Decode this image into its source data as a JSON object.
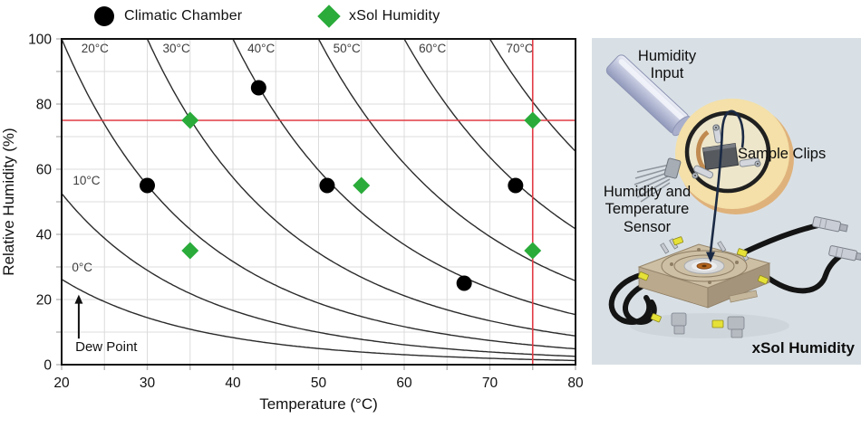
{
  "colors": {
    "accent_green": "#2aab3a",
    "crosshair_red": "#e23b43",
    "grid_gray": "#dcdcdc",
    "curve_black": "#2b2b2b",
    "panel_background": "#d9e0e5"
  },
  "chart_data": {
    "type": "scatter",
    "xlabel": "Temperature (°C)",
    "ylabel": "Relative Humidity (%)",
    "xlim": [
      20,
      80
    ],
    "ylim": [
      0,
      100
    ],
    "x_major_ticks": [
      20,
      30,
      40,
      50,
      60,
      70,
      80
    ],
    "y_major_ticks": [
      0,
      20,
      40,
      60,
      80,
      100
    ],
    "x_minor_step": 5,
    "y_minor_step": 10,
    "grid": {
      "on": true,
      "x_step": 5,
      "y_step": 10,
      "color": "#dcdcdc"
    },
    "dew_point_curves": {
      "temps": [
        0,
        10,
        20,
        30,
        40,
        50,
        60,
        70
      ],
      "color": "#2b2b2b",
      "labels": [
        {
          "text": "0°C",
          "t": 22.4,
          "rh": 28.6
        },
        {
          "text": "10°C",
          "t": 22.9,
          "rh": 55.3
        },
        {
          "text": "20°C",
          "t": 23.9,
          "rh": 95.8
        },
        {
          "text": "30°C",
          "t": 33.4,
          "rh": 95.8
        },
        {
          "text": "40°C",
          "t": 43.3,
          "rh": 95.8
        },
        {
          "text": "50°C",
          "t": 53.3,
          "rh": 95.8
        },
        {
          "text": "60°C",
          "t": 63.3,
          "rh": 95.8
        },
        {
          "text": "70°C",
          "t": 73.5,
          "rh": 95.8
        }
      ]
    },
    "annotation": {
      "text": "Dew Point",
      "arrow_t": 22,
      "arrow_rh_from": 8,
      "arrow_rh_to": 21.5,
      "text_t": 21.6,
      "text_rh": 4.2
    },
    "crosshair": {
      "x": 75,
      "y": 75,
      "color": "#e23b43"
    },
    "series": [
      {
        "name": "Climatic Chamber",
        "marker": "circle",
        "color": "#000000",
        "points": [
          [
            30,
            55
          ],
          [
            43,
            85
          ],
          [
            51,
            55
          ],
          [
            67,
            25
          ],
          [
            73,
            55
          ]
        ]
      },
      {
        "name": "xSol Humidity",
        "marker": "diamond",
        "color": "#2aab3a",
        "points": [
          [
            35,
            75
          ],
          [
            35,
            35
          ],
          [
            55,
            55
          ],
          [
            75,
            75
          ],
          [
            75,
            35
          ]
        ]
      }
    ]
  },
  "panel": {
    "background": "#d9e0e5",
    "labels": {
      "humidity_input": "Humidity Input",
      "sample_clips": "Sample Clips",
      "sensor": "Humidity and Temperature Sensor",
      "device": "xSol Humidity"
    }
  }
}
